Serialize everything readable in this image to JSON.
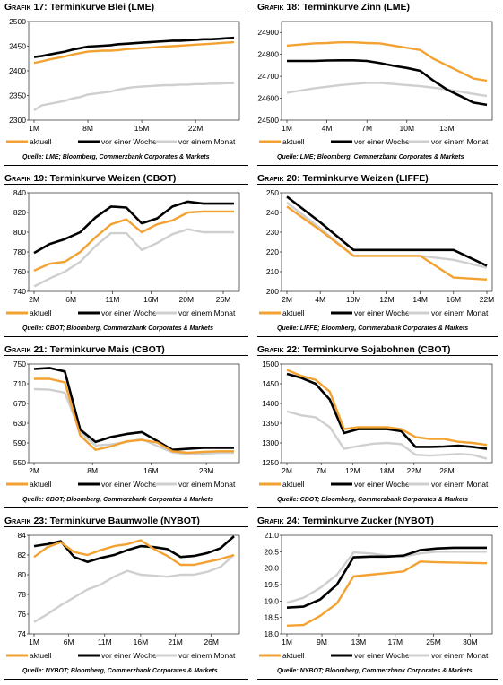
{
  "colors": {
    "aktuell": "#f3a232",
    "woche": "#000000",
    "monat": "#cfcfcf",
    "grid": "#bbbbbb"
  },
  "panels": [
    {
      "title_prefix": "Grafik 17:",
      "title_text": "Terminkurve Blei (LME)",
      "source": "Quelle: LME; Bloomberg, Commerzbank Corporates & Markets",
      "chart_data": {
        "type": "line",
        "ylim": [
          2300,
          2500
        ],
        "yticks": [
          "2300",
          "2350",
          "2400",
          "2450",
          "2500"
        ],
        "xticklabels": [
          "1M",
          "8M",
          "15M",
          "22M"
        ],
        "n_points": 27,
        "xtick_positions": [
          0,
          7,
          14,
          21
        ],
        "series": [
          {
            "name": "aktuell",
            "values": [
              2416,
              2419,
              2423,
              2426,
              2429,
              2433,
              2436,
              2439,
              2440,
              2441,
              2441,
              2442,
              2444,
              2445,
              2446,
              2447,
              2448,
              2449,
              2450,
              2451,
              2452,
              2453,
              2454,
              2455,
              2456,
              2457,
              2458
            ]
          },
          {
            "name": "vor einer Woche",
            "values": [
              2428,
              2430,
              2433,
              2436,
              2439,
              2443,
              2446,
              2449,
              2450,
              2451,
              2452,
              2454,
              2455,
              2456,
              2457,
              2458,
              2459,
              2460,
              2461,
              2461,
              2462,
              2463,
              2464,
              2464,
              2465,
              2466,
              2467
            ]
          },
          {
            "name": "vor einem Monat",
            "values": [
              2320,
              2330,
              2333,
              2336,
              2339,
              2344,
              2347,
              2352,
              2354,
              2356,
              2358,
              2362,
              2365,
              2367,
              2368,
              2369,
              2370,
              2371,
              2371,
              2372,
              2372,
              2373,
              2373,
              2374,
              2374,
              2375,
              2375
            ]
          }
        ]
      }
    },
    {
      "title_prefix": "Grafik 18:",
      "title_text": "Terminkurve Zinn (LME)",
      "source": "Quelle: LME; Bloomberg, Commerzbank Corporates & Markets",
      "chart_data": {
        "type": "line",
        "ylim": [
          24500,
          24950
        ],
        "yticks": [
          "24500",
          "24600",
          "24700",
          "24800",
          "24900"
        ],
        "xticklabels": [
          "1M",
          "4M",
          "7M",
          "10M",
          "13M"
        ],
        "n_points": 16,
        "xtick_positions": [
          0,
          3,
          6,
          9,
          12
        ],
        "series": [
          {
            "name": "aktuell",
            "values": [
              24840,
              24845,
              24850,
              24852,
              24855,
              24855,
              24852,
              24850,
              24840,
              24830,
              24820,
              24780,
              24750,
              24720,
              24690,
              24680
            ]
          },
          {
            "name": "vor einer Woche",
            "values": [
              24770,
              24770,
              24770,
              24772,
              24773,
              24773,
              24770,
              24760,
              24748,
              24738,
              24725,
              24680,
              24640,
              24610,
              24580,
              24570
            ]
          },
          {
            "name": "vor einem Monat",
            "values": [
              24625,
              24635,
              24645,
              24652,
              24660,
              24665,
              24670,
              24670,
              24665,
              24660,
              24655,
              24648,
              24640,
              24630,
              24620,
              24610
            ]
          }
        ]
      }
    },
    {
      "title_prefix": "Grafik 19:",
      "title_text": "Terminkurve Weizen (CBOT)",
      "source": "Quelle: CBOT; Bloomberg, Commerzbank Corporates & Markets",
      "chart_data": {
        "type": "line",
        "ylim": [
          740,
          840
        ],
        "yticks": [
          "740",
          "760",
          "780",
          "800",
          "820",
          "840"
        ],
        "xticklabels": [
          "2M",
          "6M",
          "11M",
          "16M",
          "20M",
          "26M"
        ],
        "n_points": 14,
        "xtick_positions": [
          0,
          2.4,
          5.1,
          7.6,
          9.9,
          12.3
        ],
        "series": [
          {
            "name": "aktuell",
            "values": [
              761,
              768,
              770,
              780,
              795,
              808,
              813,
              800,
              808,
              812,
              820,
              821,
              821,
              821
            ]
          },
          {
            "name": "vor einer Woche",
            "values": [
              779,
              788,
              793,
              800,
              815,
              826,
              825,
              809,
              814,
              826,
              831,
              829,
              829,
              829
            ]
          },
          {
            "name": "vor einem Monat",
            "values": [
              745,
              753,
              760,
              770,
              786,
              799,
              799,
              782,
              789,
              798,
              803,
              800,
              800,
              800
            ]
          }
        ]
      }
    },
    {
      "title_prefix": "Grafik 20:",
      "title_text": "Terminkurve Weizen (LIFFE)",
      "source": "Quelle: LIFFE; Bloomberg, Commerzbank Corporates & Markets",
      "chart_data": {
        "type": "line",
        "ylim": [
          200,
          250
        ],
        "yticks": [
          "200",
          "210",
          "220",
          "230",
          "240",
          "250"
        ],
        "xticklabels": [
          "2M",
          "4M",
          "10M",
          "12M",
          "14M",
          "16M",
          "22M"
        ],
        "n_points": 7,
        "xtick_positions": [
          0,
          1,
          2,
          3,
          4,
          5,
          6
        ],
        "series": [
          {
            "name": "aktuell",
            "values": [
              243,
              231,
              218,
              218,
              218,
              207,
              206
            ]
          },
          {
            "name": "vor einer Woche",
            "values": [
              248,
              235,
              221,
              221,
              221,
              221,
              213
            ]
          },
          {
            "name": "vor einem Monat",
            "values": [
              245,
              232,
              218,
              218,
              218,
              216,
              212
            ]
          }
        ]
      }
    },
    {
      "title_prefix": "Grafik 21:",
      "title_text": "Terminkurve Mais (CBOT)",
      "source": "Quelle: CBOT; Bloomberg, Commerzbank Corporates & Markets",
      "chart_data": {
        "type": "line",
        "ylim": [
          550,
          750
        ],
        "yticks": [
          "550",
          "590",
          "630",
          "670",
          "710",
          "750"
        ],
        "xticklabels": [
          "2M",
          "8M",
          "16M",
          "23M"
        ],
        "n_points": 14,
        "xtick_positions": [
          0,
          3.8,
          7.6,
          11.2
        ],
        "series": [
          {
            "name": "aktuell",
            "values": [
              720,
              720,
              713,
              605,
              576,
              583,
              593,
              596,
              591,
              573,
              570,
              572,
              573,
              573
            ]
          },
          {
            "name": "vor einer Woche",
            "values": [
              740,
              742,
              735,
              617,
              592,
              602,
              608,
              612,
              594,
              576,
              578,
              580,
              580,
              580
            ]
          },
          {
            "name": "vor einem Monat",
            "values": [
              699,
              698,
              692,
              612,
              585,
              587,
              592,
              598,
              584,
              571,
              567,
              568,
              570,
              570
            ]
          }
        ]
      }
    },
    {
      "title_prefix": "Grafik 22:",
      "title_text": "Terminkurve Sojabohnen (CBOT)",
      "source": "Quelle: CBOT; Bloomberg, Commerzbank Corporates & Markets",
      "chart_data": {
        "type": "line",
        "ylim": [
          1250,
          1500
        ],
        "yticks": [
          "1250",
          "1300",
          "1350",
          "1400",
          "1450",
          "1500"
        ],
        "xticklabels": [
          "2M",
          "7M",
          "12M",
          "18M",
          "22M",
          "28M"
        ],
        "n_points": 15,
        "xtick_positions": [
          0,
          2.4,
          4.6,
          7.0,
          8.9,
          11.2
        ],
        "series": [
          {
            "name": "aktuell",
            "values": [
              1485,
              1470,
              1460,
              1430,
              1335,
              1340,
              1340,
              1340,
              1335,
              1315,
              1310,
              1310,
              1303,
              1300,
              1295
            ]
          },
          {
            "name": "vor einer Woche",
            "values": [
              1475,
              1465,
              1450,
              1410,
              1325,
              1335,
              1335,
              1335,
              1330,
              1290,
              1290,
              1291,
              1293,
              1290,
              1285
            ]
          },
          {
            "name": "vor einem Monat",
            "values": [
              1380,
              1370,
              1365,
              1340,
              1285,
              1292,
              1298,
              1300,
              1297,
              1270,
              1268,
              1270,
              1272,
              1270,
              1260
            ]
          }
        ]
      }
    },
    {
      "title_prefix": "Grafik 23:",
      "title_text": "Terminkurve Baumwolle (NYBOT)",
      "source": "Quelle: NYBOT; Bloomberg, Commerzbank Corporates & Markets",
      "chart_data": {
        "type": "line",
        "ylim": [
          74,
          84
        ],
        "yticks": [
          "74",
          "76",
          "78",
          "80",
          "82",
          "84"
        ],
        "xticklabels": [
          "1M",
          "6M",
          "11M",
          "16M",
          "21M",
          "26M"
        ],
        "n_points": 16,
        "xtick_positions": [
          0,
          2.6,
          5.3,
          8.0,
          10.6,
          13.3
        ],
        "series": [
          {
            "name": "aktuell",
            "values": [
              81.8,
              82.8,
              83.3,
              82.3,
              82.0,
              82.5,
              82.9,
              83.1,
              83.5,
              82.6,
              81.9,
              81.0,
              81.0,
              81.3,
              81.6,
              82.0
            ]
          },
          {
            "name": "vor einer Woche",
            "values": [
              82.9,
              83.1,
              83.4,
              81.8,
              81.3,
              81.7,
              82.0,
              82.5,
              82.9,
              82.8,
              82.6,
              81.8,
              81.9,
              82.2,
              82.7,
              83.9
            ]
          },
          {
            "name": "vor einem Monat",
            "values": [
              75.2,
              76.0,
              76.9,
              77.7,
              78.5,
              79.0,
              79.8,
              80.4,
              80.0,
              79.9,
              79.8,
              80.0,
              80.0,
              80.3,
              80.8,
              82.0
            ]
          }
        ]
      }
    },
    {
      "title_prefix": "Grafik 24:",
      "title_text": "Terminkurve Zucker (NYBOT)",
      "source": "Quelle: NYBOT; Bloomberg, Commerzbank Corporates & Markets",
      "chart_data": {
        "type": "line",
        "ylim": [
          18.0,
          21.0
        ],
        "yticks": [
          "18.0",
          "18.5",
          "19.0",
          "19.5",
          "20.0",
          "20.5",
          "21.0"
        ],
        "xticklabels": [
          "1M",
          "9M",
          "13M",
          "17M",
          "25M",
          "30M"
        ],
        "n_points": 13,
        "xtick_positions": [
          0,
          2.1,
          4.3,
          6.5,
          8.8,
          11.0
        ],
        "series": [
          {
            "name": "aktuell",
            "values": [
              18.25,
              18.27,
              18.55,
              18.93,
              19.75,
              19.8,
              19.85,
              19.9,
              20.2,
              20.18,
              20.17,
              20.16,
              20.15
            ]
          },
          {
            "name": "vor einer Woche",
            "values": [
              18.8,
              18.83,
              19.05,
              19.5,
              20.33,
              20.35,
              20.35,
              20.38,
              20.55,
              20.6,
              20.62,
              20.62,
              20.62
            ]
          },
          {
            "name": "vor einem Monat",
            "values": [
              18.95,
              19.1,
              19.4,
              19.8,
              20.48,
              20.45,
              20.38,
              20.35,
              20.45,
              20.5,
              20.5,
              20.5,
              20.5
            ]
          }
        ]
      }
    }
  ]
}
